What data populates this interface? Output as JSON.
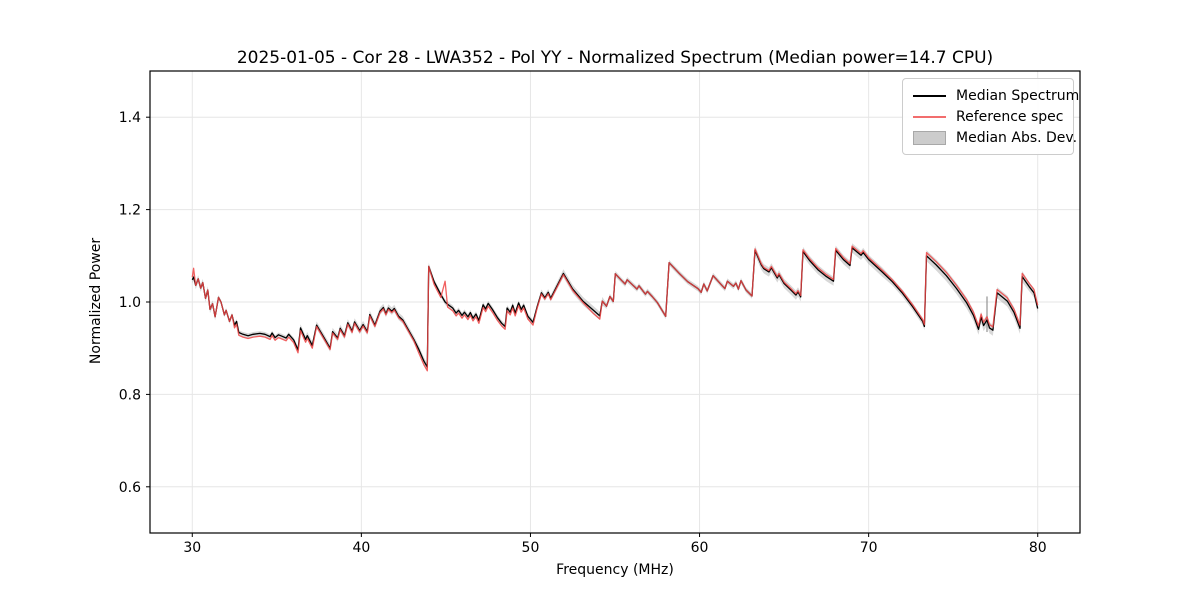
{
  "chart_data": {
    "type": "line",
    "title": "2025-01-05 - Cor 28 - LWA352 - Pol YY - Normalized Spectrum (Median power=14.7 CPU)",
    "xlabel": "Frequency (MHz)",
    "ylabel": "Normalized Power",
    "xlim": [
      27.5,
      82.5
    ],
    "ylim": [
      0.5,
      1.5
    ],
    "xticks": [
      30,
      40,
      50,
      60,
      70,
      80
    ],
    "yticks": [
      0.6,
      0.8,
      1.0,
      1.2,
      1.4
    ],
    "grid": true,
    "grid_color": "#e6e6e6",
    "legend": {
      "position": "upper right",
      "entries": [
        {
          "label": "Median Spectrum",
          "type": "line",
          "color": "#000000"
        },
        {
          "label": "Reference spec",
          "type": "line",
          "color": "#f26d6d"
        },
        {
          "label": "Median Abs. Dev.",
          "type": "patch",
          "color": "#cccccc"
        }
      ]
    },
    "x": [
      30.0,
      30.08,
      30.2,
      30.35,
      30.5,
      30.62,
      30.78,
      30.92,
      31.05,
      31.2,
      31.35,
      31.55,
      31.7,
      31.9,
      32.0,
      32.2,
      32.35,
      32.5,
      32.62,
      32.75,
      33.0,
      33.3,
      33.6,
      34.0,
      34.3,
      34.6,
      34.72,
      34.9,
      35.1,
      35.3,
      35.55,
      35.7,
      36.0,
      36.25,
      36.4,
      36.7,
      36.8,
      37.1,
      37.35,
      37.8,
      38.15,
      38.3,
      38.6,
      38.75,
      39.0,
      39.2,
      39.45,
      39.6,
      39.9,
      40.1,
      40.35,
      40.5,
      40.8,
      41.1,
      41.3,
      41.45,
      41.6,
      41.8,
      41.95,
      42.2,
      42.45,
      42.7,
      43.1,
      43.4,
      43.7,
      43.9,
      43.98,
      44.3,
      44.7,
      44.95,
      45.1,
      45.4,
      45.6,
      45.75,
      45.95,
      46.1,
      46.3,
      46.45,
      46.6,
      46.78,
      46.95,
      47.2,
      47.35,
      47.5,
      47.75,
      48.05,
      48.3,
      48.5,
      48.62,
      48.8,
      48.95,
      49.1,
      49.3,
      49.45,
      49.6,
      49.85,
      50.15,
      50.4,
      50.65,
      50.85,
      51.05,
      51.2,
      51.95,
      52.5,
      53.1,
      53.7,
      54.1,
      54.25,
      54.5,
      54.7,
      54.9,
      55.02,
      55.4,
      55.6,
      55.72,
      56.3,
      56.42,
      56.8,
      56.92,
      57.2,
      57.5,
      58.0,
      58.2,
      58.8,
      59.3,
      59.9,
      60.1,
      60.25,
      60.45,
      60.8,
      61.3,
      61.5,
      61.65,
      62.0,
      62.15,
      62.3,
      62.45,
      62.75,
      63.1,
      63.28,
      63.65,
      63.8,
      64.1,
      64.25,
      64.6,
      64.7,
      65.0,
      65.4,
      65.7,
      65.82,
      65.98,
      66.12,
      66.5,
      67.0,
      67.5,
      67.92,
      68.05,
      68.5,
      68.9,
      69.02,
      69.55,
      69.68,
      70.0,
      70.8,
      71.4,
      72.0,
      72.6,
      73.2,
      73.3,
      73.42,
      74.0,
      74.6,
      75.2,
      75.8,
      76.2,
      76.5,
      76.65,
      76.8,
      77.0,
      77.15,
      77.35,
      77.6,
      78.2,
      78.6,
      78.95,
      79.08,
      79.5,
      79.78,
      80.0
    ],
    "series": [
      {
        "name": "Median Spectrum",
        "color": "#000000",
        "values": [
          1.048,
          1.054,
          1.036,
          1.05,
          1.03,
          1.042,
          1.008,
          1.026,
          0.984,
          0.996,
          0.968,
          1.01,
          1.0,
          0.972,
          0.982,
          0.958,
          0.972,
          0.95,
          0.958,
          0.934,
          0.93,
          0.927,
          0.93,
          0.932,
          0.93,
          0.925,
          0.933,
          0.923,
          0.929,
          0.926,
          0.922,
          0.93,
          0.918,
          0.896,
          0.944,
          0.919,
          0.927,
          0.906,
          0.95,
          0.922,
          0.9,
          0.936,
          0.922,
          0.943,
          0.927,
          0.955,
          0.937,
          0.957,
          0.938,
          0.951,
          0.936,
          0.973,
          0.95,
          0.98,
          0.988,
          0.975,
          0.987,
          0.98,
          0.986,
          0.969,
          0.961,
          0.945,
          0.919,
          0.897,
          0.872,
          0.859,
          1.077,
          1.044,
          1.016,
          1.0,
          0.995,
          0.987,
          0.976,
          0.982,
          0.971,
          0.978,
          0.968,
          0.977,
          0.965,
          0.974,
          0.96,
          0.994,
          0.985,
          0.997,
          0.984,
          0.966,
          0.954,
          0.947,
          0.987,
          0.978,
          0.993,
          0.976,
          0.998,
          0.984,
          0.993,
          0.969,
          0.956,
          0.99,
          1.02,
          1.009,
          1.021,
          1.008,
          1.062,
          1.028,
          1.002,
          0.983,
          0.97,
          1.002,
          0.991,
          1.012,
          1.001,
          1.061,
          1.046,
          1.039,
          1.048,
          1.028,
          1.035,
          1.017,
          1.023,
          1.012,
          0.999,
          0.969,
          1.085,
          1.062,
          1.044,
          1.029,
          1.021,
          1.039,
          1.024,
          1.057,
          1.037,
          1.029,
          1.045,
          1.034,
          1.041,
          1.028,
          1.046,
          1.026,
          1.013,
          1.112,
          1.08,
          1.072,
          1.065,
          1.074,
          1.052,
          1.059,
          1.04,
          1.026,
          1.015,
          1.022,
          1.011,
          1.109,
          1.09,
          1.07,
          1.055,
          1.045,
          1.112,
          1.092,
          1.079,
          1.117,
          1.101,
          1.107,
          1.092,
          1.065,
          1.044,
          1.019,
          0.99,
          0.958,
          0.947,
          1.1,
          1.08,
          1.057,
          1.029,
          0.998,
          0.971,
          0.941,
          0.967,
          0.949,
          0.961,
          0.944,
          0.939,
          1.02,
          1.002,
          0.977,
          0.943,
          1.055,
          1.033,
          1.02,
          0.986
        ]
      },
      {
        "name": "Reference spec",
        "color": "#ee4444",
        "opacity": 0.85,
        "delta_segments": [
          {
            "from": 27.5,
            "to": 30.04,
            "delta": 0.006
          },
          {
            "from": 30.04,
            "to": 30.15,
            "delta": 0.019
          },
          {
            "from": 30.15,
            "to": 32.45,
            "delta": 0.0
          },
          {
            "from": 32.45,
            "to": 37.3,
            "delta": -0.006
          },
          {
            "from": 37.3,
            "to": 43.3,
            "delta": -0.003
          },
          {
            "from": 43.3,
            "to": 43.95,
            "delta": -0.008
          },
          {
            "from": 43.95,
            "to": 44.1,
            "delta": 0.0
          },
          {
            "from": 44.1,
            "to": 50.3,
            "delta": -0.006
          },
          {
            "from": 50.3,
            "to": 53.3,
            "delta": -0.003
          },
          {
            "from": 53.3,
            "to": 54.2,
            "delta": -0.007
          },
          {
            "from": 54.2,
            "to": 63.2,
            "delta": 0.0
          },
          {
            "from": 63.2,
            "to": 66.0,
            "delta": 0.003
          },
          {
            "from": 66.0,
            "to": 73.35,
            "delta": 0.004
          },
          {
            "from": 73.35,
            "to": 82.5,
            "delta": 0.007
          }
        ],
        "overrides": [
          {
            "x": 30.08,
            "y": 1.073
          },
          {
            "x": 44.95,
            "y": 1.045
          }
        ]
      },
      {
        "name": "Median Abs. Dev.",
        "fill": "#999999",
        "fill_opacity": 0.38,
        "mad_segments": [
          {
            "from": 27.5,
            "to": 31.5,
            "mad": 0.008
          },
          {
            "from": 31.5,
            "to": 36.0,
            "mad": 0.005
          },
          {
            "from": 36.0,
            "to": 44.2,
            "mad": 0.008
          },
          {
            "from": 44.2,
            "to": 50.5,
            "mad": 0.006
          },
          {
            "from": 50.5,
            "to": 51.9,
            "mad": 0.007
          },
          {
            "from": 51.9,
            "to": 54.4,
            "mad": 0.009
          },
          {
            "from": 54.4,
            "to": 63.2,
            "mad": 0.006
          },
          {
            "from": 63.2,
            "to": 70.9,
            "mad": 0.01
          },
          {
            "from": 70.9,
            "to": 73.35,
            "mad": 0.008
          },
          {
            "from": 73.35,
            "to": 79.2,
            "mad": 0.012
          },
          {
            "from": 79.2,
            "to": 82.5,
            "mad": 0.01
          }
        ],
        "spikes": [
          {
            "x": 77.0,
            "top": 1.012,
            "bottom": 0.935
          }
        ]
      }
    ]
  }
}
